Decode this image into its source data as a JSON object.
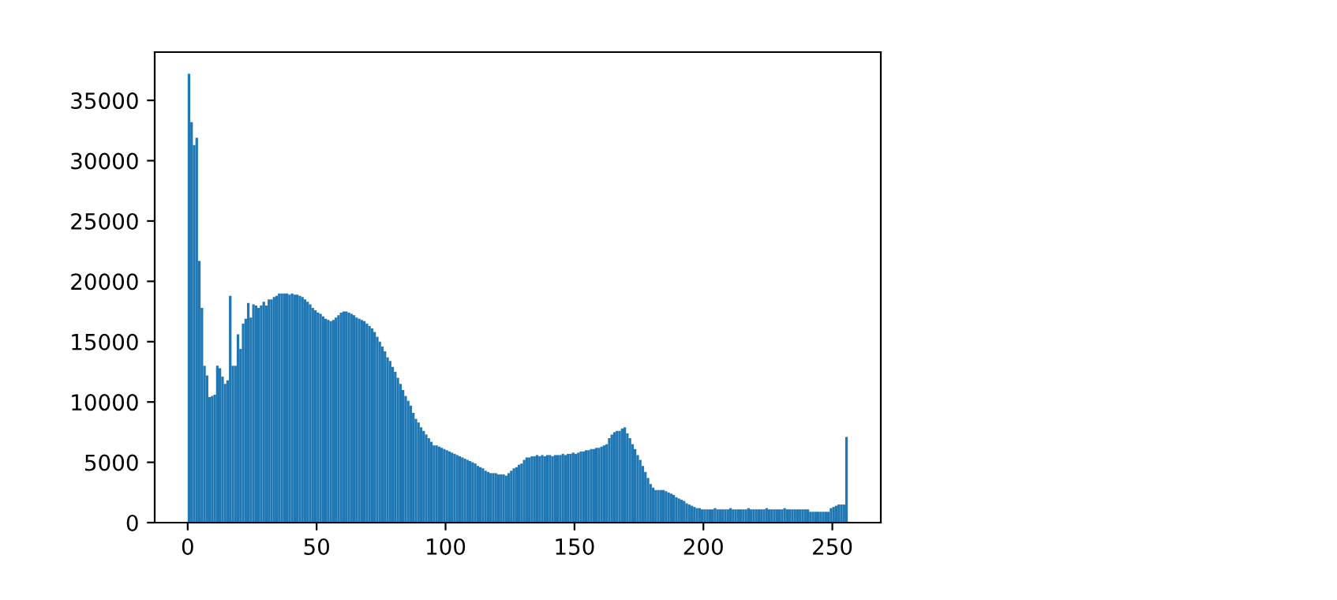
{
  "chart_data": {
    "type": "histogram",
    "bins": [
      0,
      1,
      2,
      3,
      4,
      5,
      6,
      7,
      8,
      9,
      10,
      11,
      12,
      13,
      14,
      15,
      16,
      17,
      18,
      19,
      20,
      21,
      22,
      23,
      24,
      25,
      26,
      27,
      28,
      29,
      30,
      31,
      32,
      33,
      34,
      35,
      36,
      37,
      38,
      39,
      40,
      41,
      42,
      43,
      44,
      45,
      46,
      47,
      48,
      49,
      50,
      51,
      52,
      53,
      54,
      55,
      56,
      57,
      58,
      59,
      60,
      61,
      62,
      63,
      64,
      65,
      66,
      67,
      68,
      69,
      70,
      71,
      72,
      73,
      74,
      75,
      76,
      77,
      78,
      79,
      80,
      81,
      82,
      83,
      84,
      85,
      86,
      87,
      88,
      89,
      90,
      91,
      92,
      93,
      94,
      95,
      96,
      97,
      98,
      99,
      100,
      101,
      102,
      103,
      104,
      105,
      106,
      107,
      108,
      109,
      110,
      111,
      112,
      113,
      114,
      115,
      116,
      117,
      118,
      119,
      120,
      121,
      122,
      123,
      124,
      125,
      126,
      127,
      128,
      129,
      130,
      131,
      132,
      133,
      134,
      135,
      136,
      137,
      138,
      139,
      140,
      141,
      142,
      143,
      144,
      145,
      146,
      147,
      148,
      149,
      150,
      151,
      152,
      153,
      154,
      155,
      156,
      157,
      158,
      159,
      160,
      161,
      162,
      163,
      164,
      165,
      166,
      167,
      168,
      169,
      170,
      171,
      172,
      173,
      174,
      175,
      176,
      177,
      178,
      179,
      180,
      181,
      182,
      183,
      184,
      185,
      186,
      187,
      188,
      189,
      190,
      191,
      192,
      193,
      194,
      195,
      196,
      197,
      198,
      199,
      200,
      201,
      202,
      203,
      204,
      205,
      206,
      207,
      208,
      209,
      210,
      211,
      212,
      213,
      214,
      215,
      216,
      217,
      218,
      219,
      220,
      221,
      222,
      223,
      224,
      225,
      226,
      227,
      228,
      229,
      230,
      231,
      232,
      233,
      234,
      235,
      236,
      237,
      238,
      239,
      240,
      241,
      242,
      243,
      244,
      245,
      246,
      247,
      248,
      249,
      250,
      251,
      252,
      253,
      254,
      255,
      256
    ],
    "values": [
      37200,
      33200,
      31300,
      31900,
      21700,
      17800,
      13000,
      12200,
      10400,
      10500,
      10600,
      13000,
      12800,
      12100,
      11500,
      11800,
      18800,
      13000,
      13000,
      15600,
      14400,
      16500,
      16900,
      18200,
      17000,
      18100,
      18000,
      17800,
      18000,
      18300,
      18000,
      18500,
      18500,
      18700,
      18800,
      19000,
      19000,
      19000,
      19000,
      18900,
      19000,
      18900,
      18900,
      18800,
      18700,
      18500,
      18300,
      18100,
      17800,
      17600,
      17400,
      17300,
      17100,
      16900,
      16800,
      16700,
      16800,
      17000,
      17200,
      17400,
      17500,
      17500,
      17400,
      17300,
      17200,
      17000,
      16900,
      16800,
      16700,
      16500,
      16300,
      16100,
      15800,
      15400,
      15000,
      14600,
      14200,
      13700,
      13400,
      12900,
      12500,
      12000,
      11500,
      11000,
      10500,
      10100,
      9700,
      9100,
      8600,
      8300,
      7900,
      7600,
      7300,
      7000,
      6700,
      6400,
      6400,
      6300,
      6200,
      6100,
      6000,
      5900,
      5800,
      5700,
      5600,
      5500,
      5400,
      5300,
      5200,
      5100,
      5000,
      4900,
      4700,
      4600,
      4500,
      4300,
      4200,
      4100,
      4100,
      4100,
      4000,
      4000,
      4000,
      3900,
      4100,
      4300,
      4500,
      4600,
      4800,
      4900,
      5200,
      5400,
      5400,
      5500,
      5500,
      5600,
      5500,
      5600,
      5500,
      5600,
      5600,
      5500,
      5600,
      5600,
      5600,
      5700,
      5600,
      5700,
      5700,
      5800,
      5700,
      5800,
      5900,
      5900,
      6000,
      6000,
      6100,
      6100,
      6200,
      6200,
      6300,
      6400,
      6500,
      7000,
      7300,
      7500,
      7600,
      7600,
      7800,
      7900,
      7400,
      7000,
      6500,
      6100,
      5600,
      5200,
      4700,
      4200,
      3700,
      3200,
      2900,
      2700,
      2700,
      2700,
      2700,
      2600,
      2500,
      2400,
      2300,
      2100,
      2000,
      1900,
      1800,
      1600,
      1500,
      1400,
      1300,
      1200,
      1200,
      1100,
      1100,
      1100,
      1100,
      1100,
      1200,
      1100,
      1100,
      1100,
      1100,
      1100,
      1200,
      1100,
      1100,
      1100,
      1100,
      1100,
      1100,
      1200,
      1100,
      1100,
      1100,
      1100,
      1100,
      1100,
      1200,
      1100,
      1100,
      1100,
      1100,
      1100,
      1100,
      1200,
      1100,
      1100,
      1100,
      1100,
      1100,
      1100,
      1100,
      1100,
      1100,
      900,
      900,
      900,
      900,
      900,
      900,
      900,
      900,
      1200,
      1300,
      1400,
      1500,
      1500,
      1500,
      7100
    ],
    "color": "#1f77b4",
    "xlim": [
      -12.8,
      268.8
    ],
    "xticks": [
      0,
      50,
      100,
      150,
      200,
      250
    ],
    "ylim": [
      0,
      39000
    ],
    "yticks": [
      0,
      5000,
      10000,
      15000,
      20000,
      25000,
      30000,
      35000
    ],
    "grid": false
  }
}
